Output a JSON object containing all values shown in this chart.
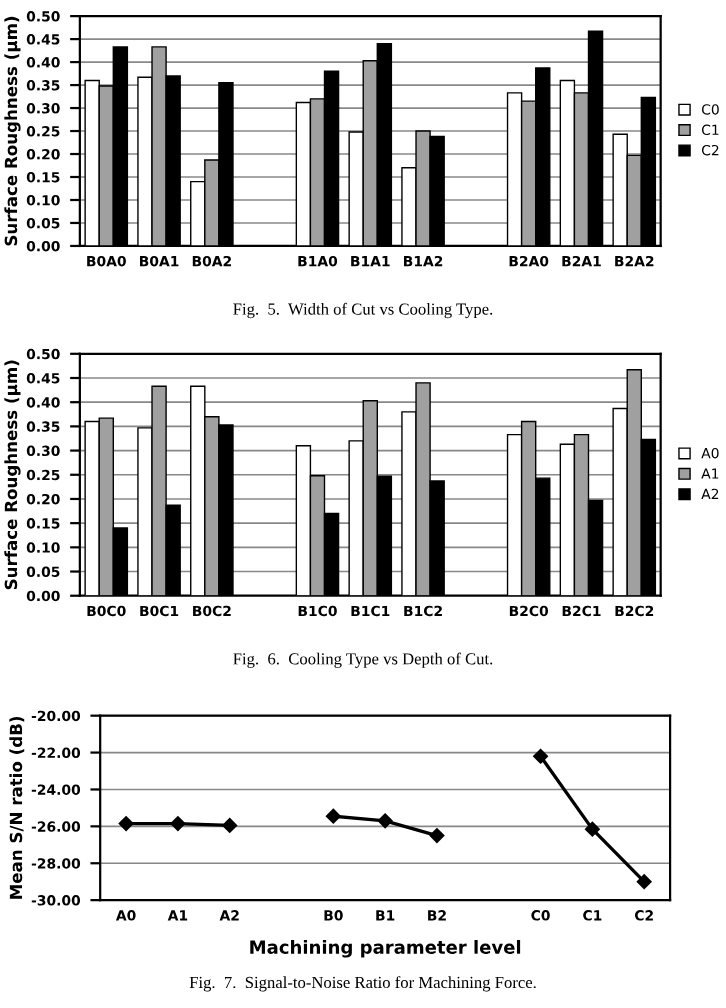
{
  "chart_data": [
    {
      "type": "bar",
      "ylabel": "Surface Roughness (µm)",
      "annotations": [
        "Fig.  5.  Width of Cut vs Cooling Type."
      ],
      "categories": [
        "B0A0",
        "B0A1",
        "B0A2",
        null,
        "B1A0",
        "B1A1",
        "B1A2",
        null,
        "B2A0",
        "B2A1",
        "B2A2"
      ],
      "series": [
        {
          "name": "C0",
          "color": "#ffffff",
          "values": [
            0.36,
            0.367,
            0.14,
            null,
            0.312,
            0.248,
            0.17,
            null,
            0.333,
            0.36,
            0.243
          ]
        },
        {
          "name": "C1",
          "color": "#a0a0a0",
          "values": [
            0.348,
            0.433,
            0.187,
            null,
            0.32,
            0.403,
            0.25,
            null,
            0.315,
            0.333,
            0.197
          ]
        },
        {
          "name": "C2",
          "color": "#000000",
          "values": [
            0.433,
            0.37,
            0.355,
            null,
            0.38,
            0.44,
            0.238,
            null,
            0.387,
            0.467,
            0.323
          ]
        }
      ],
      "ylim": [
        0,
        0.5
      ],
      "yticks": [
        {
          "value": 0,
          "label": "0.00"
        },
        {
          "value": 0.05,
          "label": "0.05"
        },
        {
          "value": 0.1,
          "label": "0.10"
        },
        {
          "value": 0.15,
          "label": "0.15"
        },
        {
          "value": 0.2,
          "label": "0.20"
        },
        {
          "value": 0.25,
          "label": "0.25"
        },
        {
          "value": 0.3,
          "label": "0.30"
        },
        {
          "value": 0.35,
          "label": "0.35"
        },
        {
          "value": 0.4,
          "label": "0.40"
        },
        {
          "value": 0.45,
          "label": "0.45"
        },
        {
          "value": 0.5,
          "label": "0.50"
        }
      ],
      "grid": "y",
      "legend": "right"
    },
    {
      "type": "bar",
      "ylabel": "Surface Roughness (µm)",
      "annotations": [
        "Fig.  6.  Cooling Type vs Depth of Cut."
      ],
      "categories": [
        "B0C0",
        "B0C1",
        "B0C2",
        null,
        "B1C0",
        "B1C1",
        "B1C2",
        null,
        "B2C0",
        "B2C1",
        "B2C2"
      ],
      "series": [
        {
          "name": "A0",
          "color": "#ffffff",
          "values": [
            0.36,
            0.347,
            0.433,
            null,
            0.31,
            0.32,
            0.38,
            null,
            0.333,
            0.313,
            0.387
          ]
        },
        {
          "name": "A1",
          "color": "#a0a0a0",
          "values": [
            0.367,
            0.433,
            0.37,
            null,
            0.248,
            0.403,
            0.44,
            null,
            0.36,
            0.333,
            0.467
          ]
        },
        {
          "name": "A2",
          "color": "#000000",
          "values": [
            0.14,
            0.187,
            0.353,
            null,
            0.17,
            0.247,
            0.237,
            null,
            0.243,
            0.197,
            0.323
          ]
        }
      ],
      "ylim": [
        0,
        0.5
      ],
      "yticks": [
        {
          "value": 0,
          "label": "0.00"
        },
        {
          "value": 0.05,
          "label": "0.05"
        },
        {
          "value": 0.1,
          "label": "0.10"
        },
        {
          "value": 0.15,
          "label": "0.15"
        },
        {
          "value": 0.2,
          "label": "0.20"
        },
        {
          "value": 0.25,
          "label": "0.25"
        },
        {
          "value": 0.3,
          "label": "0.30"
        },
        {
          "value": 0.35,
          "label": "0.35"
        },
        {
          "value": 0.4,
          "label": "0.40"
        },
        {
          "value": 0.45,
          "label": "0.45"
        },
        {
          "value": 0.5,
          "label": "0.50"
        }
      ],
      "grid": "y",
      "legend": "right"
    },
    {
      "type": "line",
      "ylabel": "Mean S/N ratio (dB)",
      "xlabel": "Machining parameter level",
      "annotations": [
        "Fig.  7.  Signal-to-Noise Ratio for Machining Force."
      ],
      "categories": [
        "A0",
        "A1",
        "A2",
        null,
        "B0",
        "B1",
        "B2",
        null,
        "C0",
        "C1",
        "C2"
      ],
      "series": [
        {
          "color": "#000000",
          "values": [
            -25.85,
            -25.85,
            -25.95,
            null,
            -25.45,
            -25.7,
            -26.5,
            null,
            -22.2,
            -26.15,
            -29.0
          ]
        }
      ],
      "ylim": [
        -30,
        -20
      ],
      "yticks": [
        {
          "value": -30,
          "label": "-30.00"
        },
        {
          "value": -28,
          "label": "-28.00"
        },
        {
          "value": -26,
          "label": "-26.00"
        },
        {
          "value": -24,
          "label": "-24.00"
        },
        {
          "value": -22,
          "label": "-22.00"
        },
        {
          "value": -20,
          "label": "-20.00"
        }
      ],
      "grid": "y",
      "marker": "diamond",
      "line_style": "solid"
    }
  ]
}
